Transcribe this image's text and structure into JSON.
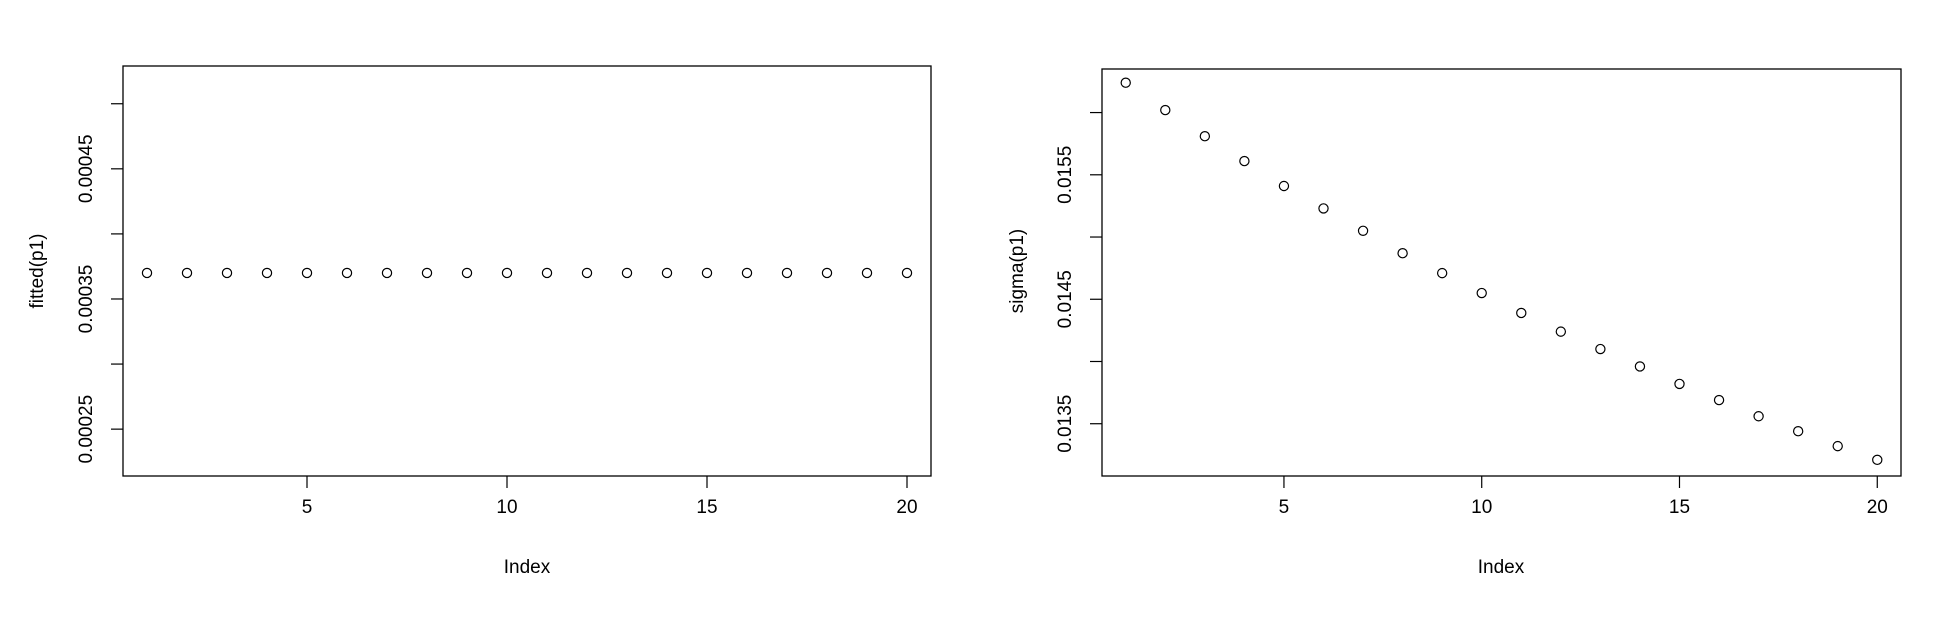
{
  "chart_data": [
    {
      "type": "scatter",
      "title": "",
      "xlabel": "Index",
      "ylabel": "fitted(p1)",
      "xlim": [
        0.4,
        20.6
      ],
      "ylim": [
        0.000214,
        0.000529
      ],
      "x_ticks": [
        5,
        10,
        15,
        20
      ],
      "x_tick_labels": [
        "5",
        "10",
        "15",
        "20"
      ],
      "y_ticks": [
        0.00025,
        0.0003,
        0.00035,
        0.0004,
        0.00045,
        0.0005
      ],
      "y_tick_labels": [
        "0.00025",
        "",
        "0.00035",
        "",
        "0.00045",
        ""
      ],
      "grid": false,
      "marker": "open-circle",
      "x": [
        1,
        2,
        3,
        4,
        5,
        6,
        7,
        8,
        9,
        10,
        11,
        12,
        13,
        14,
        15,
        16,
        17,
        18,
        19,
        20
      ],
      "y": [
        0.00037,
        0.00037,
        0.00037,
        0.00037,
        0.00037,
        0.00037,
        0.00037,
        0.00037,
        0.00037,
        0.00037,
        0.00037,
        0.00037,
        0.00037,
        0.00037,
        0.00037,
        0.00037,
        0.00037,
        0.00037,
        0.00037,
        0.00037
      ]
    },
    {
      "type": "scatter",
      "title": "",
      "xlabel": "Index",
      "ylabel": "sigma(p1)",
      "xlim": [
        0.4,
        20.6
      ],
      "ylim": [
        0.01308,
        0.01635
      ],
      "x_ticks": [
        5,
        10,
        15,
        20
      ],
      "x_tick_labels": [
        "5",
        "10",
        "15",
        "20"
      ],
      "y_ticks": [
        0.0135,
        0.014,
        0.0145,
        0.015,
        0.0155,
        0.016
      ],
      "y_tick_labels": [
        "0.0135",
        "",
        "0.0145",
        "",
        "0.0155",
        ""
      ],
      "grid": false,
      "marker": "open-circle",
      "x": [
        1,
        2,
        3,
        4,
        5,
        6,
        7,
        8,
        9,
        10,
        11,
        12,
        13,
        14,
        15,
        16,
        17,
        18,
        19,
        20
      ],
      "y": [
        0.01624,
        0.01602,
        0.01581,
        0.01561,
        0.01541,
        0.01523,
        0.01505,
        0.01487,
        0.01471,
        0.01455,
        0.01439,
        0.01424,
        0.0141,
        0.01396,
        0.01382,
        0.01369,
        0.01356,
        0.01344,
        0.01332,
        0.01321
      ]
    }
  ]
}
